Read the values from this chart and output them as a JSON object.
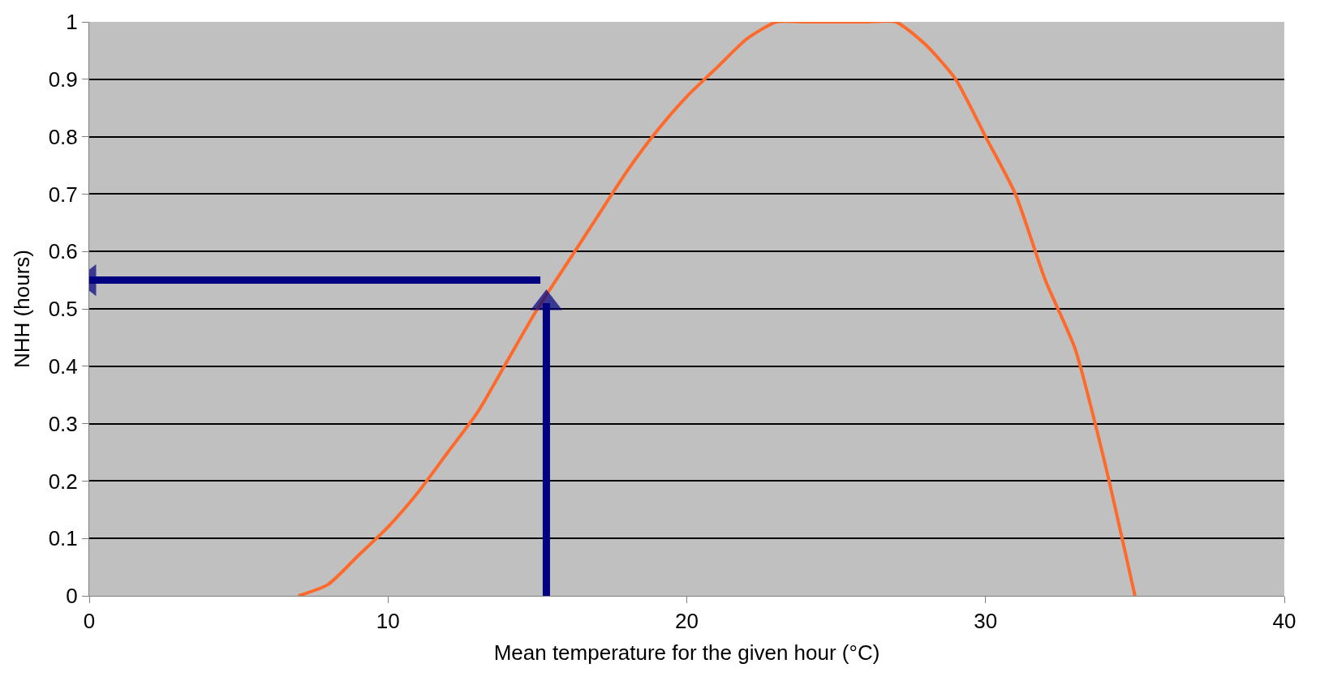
{
  "chart_data": {
    "type": "line",
    "xlabel": "Mean temperature for the given hour (°C)",
    "ylabel": "NHH (hours)",
    "x": [
      7,
      8,
      9,
      10,
      11,
      12,
      13,
      14,
      15,
      16,
      17,
      18,
      19,
      20,
      21,
      22,
      23,
      24,
      25,
      26,
      27,
      28,
      29,
      30,
      31,
      32,
      33,
      34,
      35
    ],
    "series": [
      {
        "color": "#ff6a2a",
        "values": [
          0,
          0.02,
          0.07,
          0.12,
          0.18,
          0.25,
          0.32,
          0.41,
          0.5,
          0.58,
          0.66,
          0.74,
          0.81,
          0.87,
          0.92,
          0.97,
          1,
          1,
          1,
          1,
          1,
          0.96,
          0.9,
          0.8,
          0.7,
          0.55,
          0.43,
          0.23,
          0
        ]
      },
      {
        "color": "#000080",
        "x": [
          15.3,
          15.3
        ],
        "values": [
          0,
          0.51
        ],
        "marker": "triangle"
      },
      {
        "color": "#000080",
        "x": [
          15.1,
          0
        ],
        "values": [
          0.55,
          0.55
        ],
        "marker": "triangle"
      }
    ],
    "xlim": [
      0,
      40
    ],
    "xticks": [
      0,
      10,
      20,
      30,
      40
    ],
    "ylim": [
      0,
      1
    ],
    "yticks": [
      0,
      0.1,
      0.2,
      0.3,
      0.4,
      0.5,
      0.6,
      0.7,
      0.8,
      0.9,
      1
    ],
    "grid": "y",
    "line_style": "solid"
  }
}
